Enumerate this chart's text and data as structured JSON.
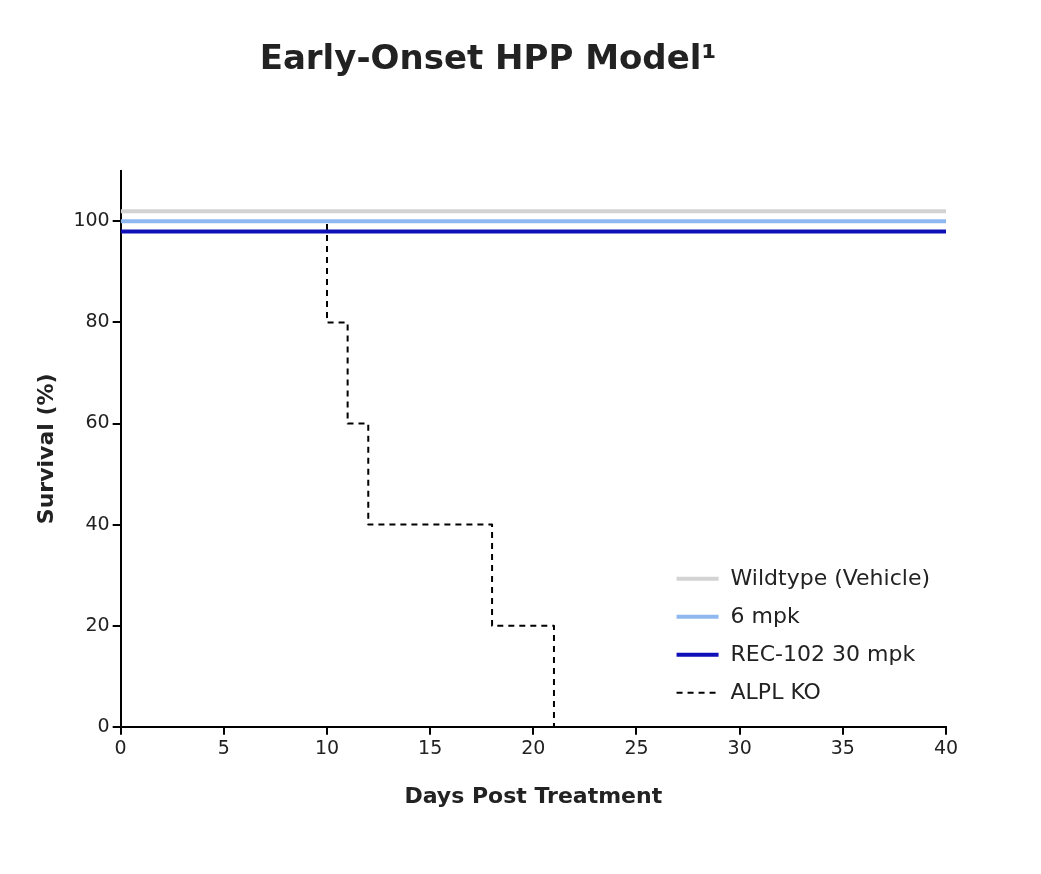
{
  "chart_data": {
    "type": "step",
    "title": "Early-Onset HPP Model¹",
    "xlabel": "Days Post Treatment",
    "ylabel": "Survival (%)",
    "xlim": [
      0,
      40
    ],
    "xticks": [
      0,
      5,
      10,
      15,
      20,
      25,
      30,
      35,
      40
    ],
    "ylim": [
      0,
      110
    ],
    "yticks": [
      0,
      20,
      40,
      60,
      80,
      100
    ],
    "grid": false,
    "legend": "bottom right",
    "marker": "none",
    "series": [
      {
        "name": "Wildtype (Vehicle)",
        "color": "#d3d3d3",
        "x": [
          0,
          40
        ],
        "values": [
          102,
          102
        ]
      },
      {
        "name": "6 mpk",
        "color": "#8fb8f0",
        "x": [
          0,
          40
        ],
        "values": [
          100,
          100
        ]
      },
      {
        "name": "REC-102 30 mpk",
        "color": "#1010b8",
        "x": [
          0,
          40
        ],
        "values": [
          98,
          98
        ]
      },
      {
        "name": "ALPL KO",
        "color": "#000000",
        "line_style": "dashed",
        "x": [
          0,
          10,
          11,
          12,
          18,
          21
        ],
        "values": [
          100,
          80,
          60,
          40,
          20,
          0
        ]
      }
    ]
  }
}
